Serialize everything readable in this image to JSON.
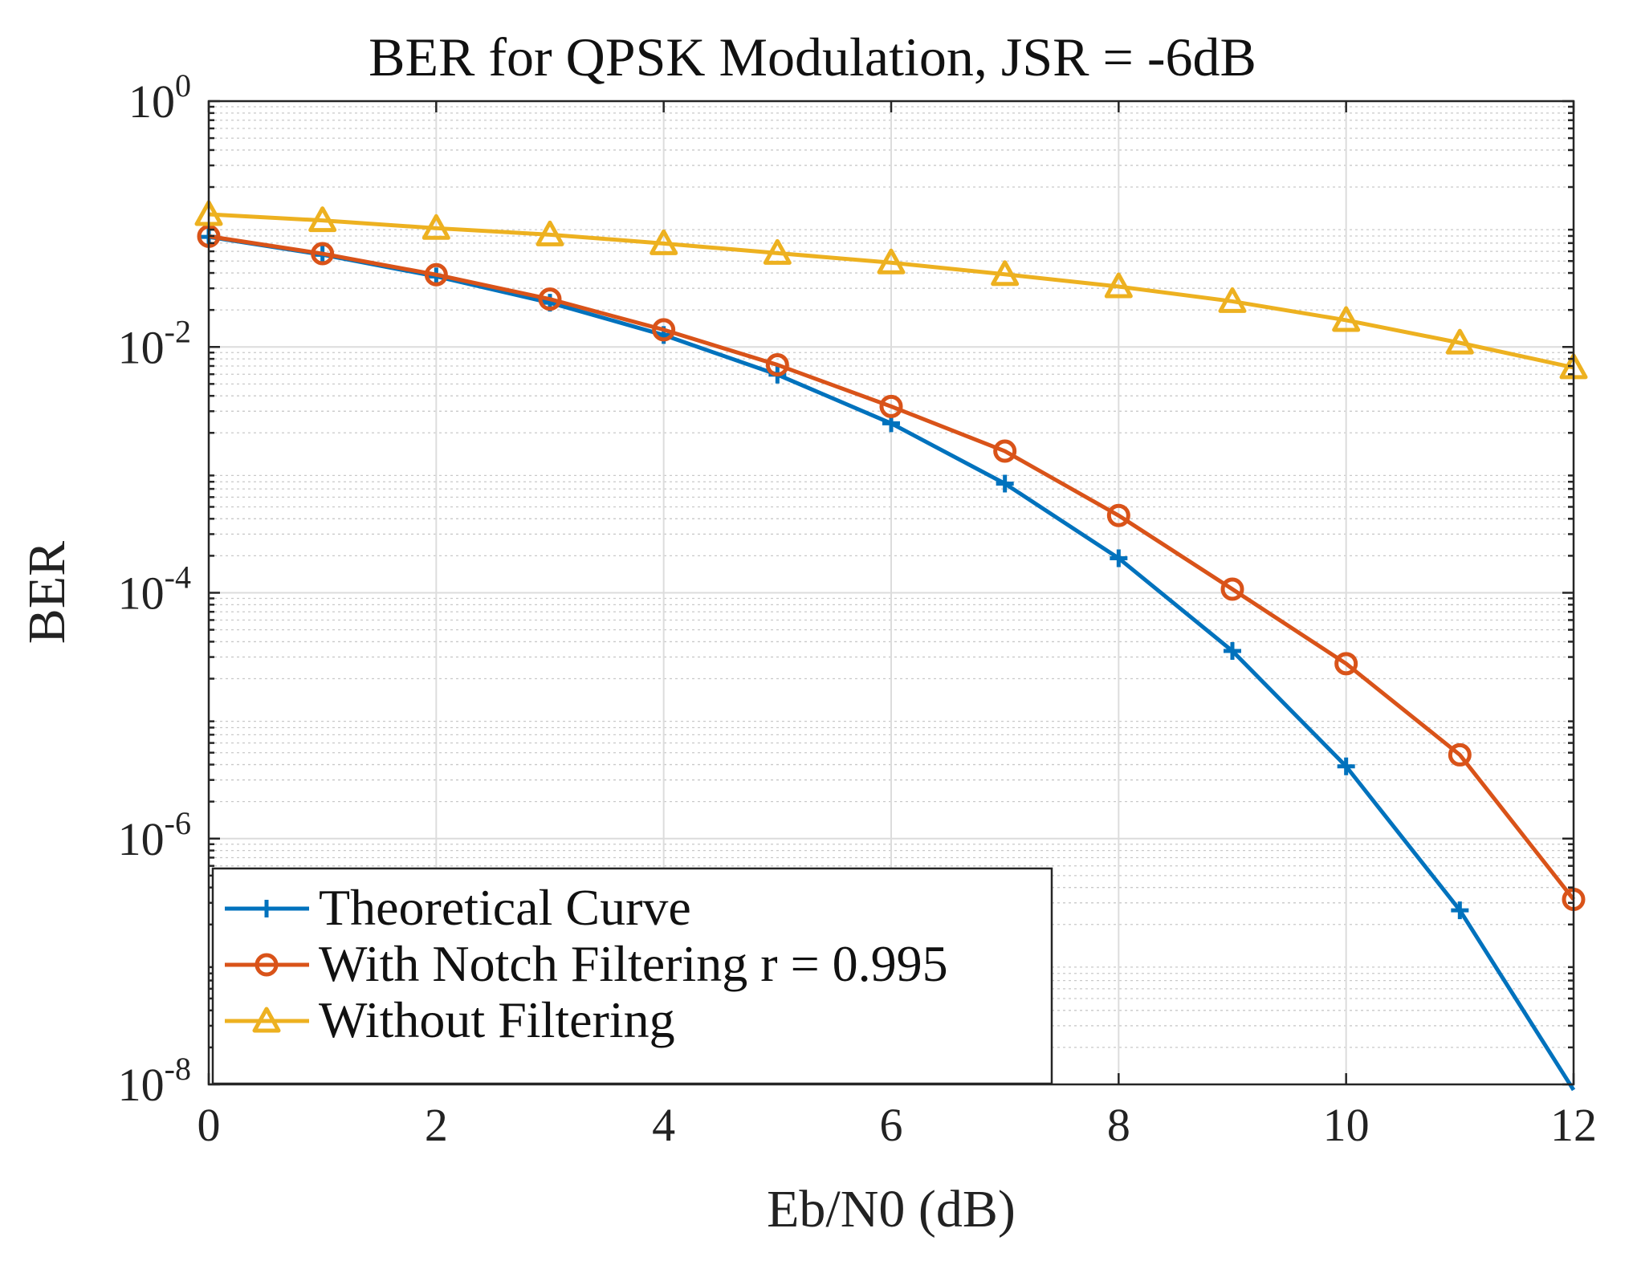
{
  "chart_data": {
    "type": "line",
    "title": "BER for QPSK Modulation, JSR = -6dB",
    "xlabel": "Eb/N0 (dB)",
    "ylabel": "BER",
    "xlim": [
      0,
      12
    ],
    "ylim": [
      1e-08,
      1
    ],
    "yscale": "log",
    "grid": true,
    "x_ticks": [
      0,
      2,
      4,
      6,
      8,
      10,
      12
    ],
    "x_tick_labels": [
      "0",
      "2",
      "4",
      "6",
      "8",
      "10",
      "12"
    ],
    "y_ticks": [
      {
        "value": 1,
        "base": "10",
        "exp": "0"
      },
      {
        "value": 0.01,
        "base": "10",
        "exp": "-2"
      },
      {
        "value": 0.0001,
        "base": "10",
        "exp": "-4"
      },
      {
        "value": 1e-06,
        "base": "10",
        "exp": "-6"
      },
      {
        "value": 1e-08,
        "base": "10",
        "exp": "-8"
      }
    ],
    "x": [
      0,
      1,
      2,
      3,
      4,
      5,
      6,
      7,
      8,
      9,
      10,
      11,
      12
    ],
    "series": [
      {
        "name": "Theoretical Curve",
        "color": "#0072BD",
        "marker": "plus",
        "values": [
          0.0786,
          0.0563,
          0.0375,
          0.0229,
          0.0125,
          0.00595,
          0.00239,
          0.000773,
          0.000191,
          3.36e-05,
          3.87e-06,
          2.61e-07,
          9.01e-09
        ]
      },
      {
        "name": "With Notch Filtering r = 0.995",
        "color": "#D95319",
        "marker": "circle",
        "values": [
          0.0795,
          0.0574,
          0.0387,
          0.0245,
          0.0138,
          0.00715,
          0.00328,
          0.00142,
          0.000425,
          0.000107,
          2.65e-05,
          4.8e-06,
          3.2e-07
        ]
      },
      {
        "name": "Without Filtering",
        "color": "#EDB120",
        "marker": "triangle",
        "values": [
          0.12,
          0.107,
          0.0925,
          0.082,
          0.0695,
          0.058,
          0.0485,
          0.039,
          0.031,
          0.0235,
          0.0165,
          0.0108,
          0.0068
        ]
      }
    ],
    "legend_position": "bottom-left"
  }
}
